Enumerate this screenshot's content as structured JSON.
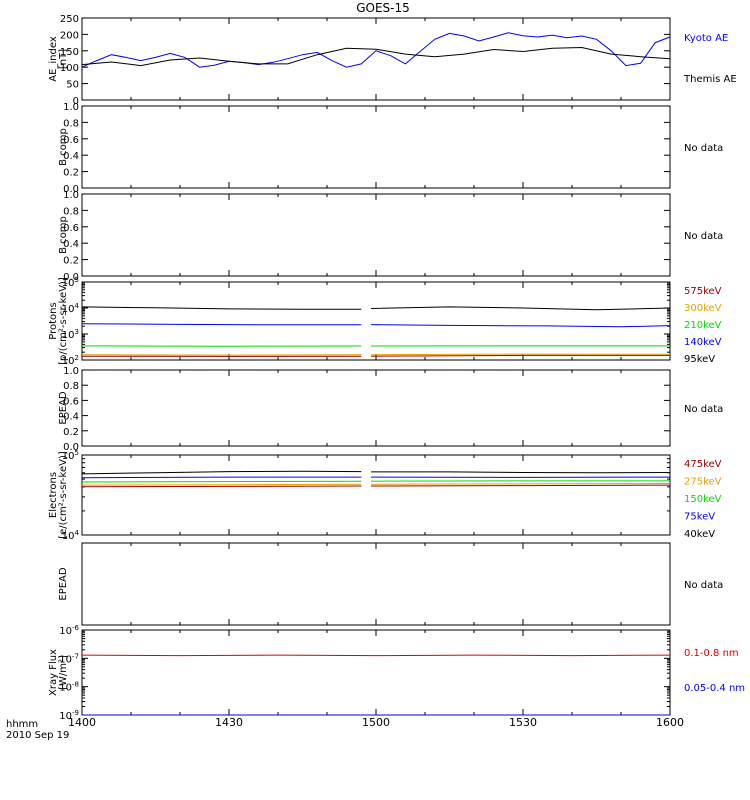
{
  "title": "GOES-15",
  "x_axis": {
    "unit_label": "hhmm",
    "date_label": "2010 Sep 19",
    "tick_labels": [
      "1400",
      "1430",
      "1500",
      "1530",
      "1600"
    ]
  },
  "chart_data": [
    {
      "type": "line",
      "ylabel": [
        "AE_index",
        "[nT]"
      ],
      "ylim": [
        0,
        250
      ],
      "yticks": [
        "0",
        "50",
        "100",
        "150",
        "200",
        "250"
      ],
      "legend_placement": "right",
      "series": [
        {
          "name": "Kyoto AE",
          "color": "#0000ff",
          "x": [
            0,
            3,
            6,
            9,
            12,
            15,
            18,
            21,
            24,
            27,
            30,
            33,
            36,
            39,
            42,
            45,
            48,
            51,
            54,
            57,
            60,
            63,
            66,
            69,
            72,
            75,
            78,
            81,
            84,
            87,
            90,
            93,
            96,
            99,
            102,
            105,
            108,
            111,
            114,
            117,
            120
          ],
          "values": [
            100,
            120,
            138,
            130,
            120,
            130,
            142,
            130,
            100,
            106,
            118,
            114,
            108,
            115,
            126,
            138,
            145,
            120,
            100,
            110,
            150,
            135,
            110,
            148,
            185,
            203,
            195,
            180,
            192,
            205,
            196,
            192,
            198,
            190,
            195,
            185,
            150,
            105,
            112,
            175,
            192
          ]
        },
        {
          "name": "Themis AE",
          "color": "#000000",
          "x": [
            0,
            6,
            12,
            18,
            24,
            30,
            36,
            42,
            48,
            54,
            60,
            66,
            72,
            78,
            84,
            90,
            96,
            102,
            108,
            114,
            120
          ],
          "values": [
            108,
            116,
            105,
            122,
            128,
            118,
            110,
            110,
            138,
            158,
            155,
            140,
            132,
            140,
            154,
            148,
            158,
            160,
            140,
            132,
            126
          ]
        }
      ]
    },
    {
      "type": "line",
      "ylabel": [
        "B comp"
      ],
      "ylim": [
        0,
        1
      ],
      "yticks": [
        "0.0",
        "0.2",
        "0.4",
        "0.6",
        "0.8",
        "1.0"
      ],
      "status": "No data",
      "series": []
    },
    {
      "type": "line",
      "ylabel": [
        "B comp"
      ],
      "ylim": [
        0,
        1
      ],
      "yticks": [
        "0.0",
        "0.2",
        "0.4",
        "0.6",
        "0.8",
        "1.0"
      ],
      "status": "No data",
      "series": []
    },
    {
      "type": "line",
      "ylabel": [
        "Protons",
        "[p/(cm²-s-sr-keV)]"
      ],
      "ylim": [
        100,
        100000
      ],
      "scale": "log",
      "yticks": [
        {
          "base": "10",
          "exp": "2"
        },
        {
          "base": "10",
          "exp": "3"
        },
        {
          "base": "10",
          "exp": "4"
        },
        {
          "base": "10",
          "exp": "5"
        }
      ],
      "data_gap": [
        57.5,
        59
      ],
      "legend_placement": "right",
      "series": [
        {
          "name": "575keV",
          "color": "#a00000",
          "x": [
            0,
            30,
            57,
            59,
            90,
            120
          ],
          "values": [
            140,
            138,
            140,
            140,
            150,
            150
          ]
        },
        {
          "name": "300keV",
          "color": "#e8a000",
          "x": [
            0,
            30,
            57,
            59,
            90,
            120
          ],
          "values": [
            160,
            155,
            158,
            160,
            168,
            165
          ]
        },
        {
          "name": "210keV",
          "color": "#00dd00",
          "x": [
            0,
            30,
            57,
            59,
            90,
            120
          ],
          "values": [
            350,
            340,
            345,
            345,
            350,
            350
          ]
        },
        {
          "name": "140keV",
          "color": "#0000ff",
          "x": [
            0,
            20,
            40,
            57,
            59,
            75,
            95,
            110,
            120
          ],
          "values": [
            2500,
            2350,
            2250,
            2250,
            2300,
            2150,
            2050,
            1900,
            2100
          ]
        },
        {
          "name": "95keV",
          "color": "#000000",
          "x": [
            0,
            15,
            30,
            45,
            57,
            59,
            75,
            90,
            105,
            120
          ],
          "values": [
            11000,
            10200,
            9200,
            9000,
            9000,
            9600,
            11000,
            10000,
            8500,
            10000
          ]
        }
      ]
    },
    {
      "type": "line",
      "ylabel": [
        "EPEAD"
      ],
      "ylim": [
        0,
        1
      ],
      "yticks": [
        "0.0",
        "0.2",
        "0.4",
        "0.6",
        "0.8",
        "1.0"
      ],
      "status": "No data",
      "series": []
    },
    {
      "type": "line",
      "ylabel": [
        "Electrons",
        "[e/(cm²-s-sr-keV)]"
      ],
      "ylim": [
        10000,
        100000
      ],
      "scale": "log",
      "yticks": [
        {
          "base": "10",
          "exp": "4"
        },
        {
          "base": "10",
          "exp": "5"
        }
      ],
      "data_gap": [
        57.5,
        59
      ],
      "legend_placement": "right",
      "series": [
        {
          "name": "475keV",
          "color": "#a00000",
          "x": [
            0,
            30,
            57,
            59,
            90,
            120
          ],
          "values": [
            40000,
            40500,
            41000,
            41000,
            41500,
            42000
          ]
        },
        {
          "name": "275keV",
          "color": "#e8a000",
          "x": [
            0,
            30,
            57,
            59,
            90,
            120
          ],
          "values": [
            42000,
            42500,
            43000,
            43000,
            43500,
            44000
          ]
        },
        {
          "name": "150keV",
          "color": "#00dd00",
          "x": [
            0,
            30,
            57,
            59,
            90,
            120
          ],
          "values": [
            46000,
            46500,
            47000,
            47000,
            47500,
            47500
          ]
        },
        {
          "name": "75keV",
          "color": "#0000ff",
          "x": [
            0,
            30,
            57,
            59,
            90,
            120
          ],
          "values": [
            52000,
            53000,
            53000,
            53000,
            52500,
            53000
          ]
        },
        {
          "name": "40keV",
          "color": "#000000",
          "x": [
            0,
            15,
            30,
            45,
            57,
            59,
            75,
            90,
            105,
            120
          ],
          "values": [
            58000,
            60000,
            62000,
            62500,
            62000,
            61500,
            61500,
            60500,
            60000,
            60500
          ]
        }
      ]
    },
    {
      "type": "line",
      "ylabel": [
        "EPEAD"
      ],
      "ylim": [
        0,
        1
      ],
      "yticks": [],
      "status": "No data",
      "series": []
    },
    {
      "type": "line",
      "ylabel": [
        "Xray Flux",
        "[W/m²]"
      ],
      "ylim": [
        1e-09,
        1e-06
      ],
      "scale": "log",
      "yticks": [
        {
          "base": "10",
          "exp": "-9"
        },
        {
          "base": "10",
          "exp": "-8"
        },
        {
          "base": "10",
          "exp": "-7"
        },
        {
          "base": "10",
          "exp": "-6"
        }
      ],
      "legend_placement": "right",
      "series": [
        {
          "name": "0.1-0.8 nm",
          "color": "#dd0000",
          "x": [
            0,
            20,
            40,
            60,
            80,
            100,
            120
          ],
          "values": [
            1.3e-07,
            1.25e-07,
            1.3e-07,
            1.25e-07,
            1.3e-07,
            1.25e-07,
            1.3e-07
          ]
        },
        {
          "name": "0.05-0.4 nm",
          "color": "#0000ff",
          "x": [
            0,
            120
          ],
          "values": [
            1e-09,
            1e-09
          ]
        }
      ]
    }
  ]
}
